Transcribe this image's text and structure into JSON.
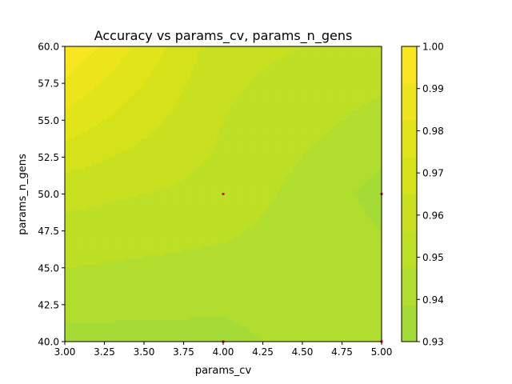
{
  "chart_data": {
    "type": "heatmap",
    "subtype": "filled-contour",
    "title": "Accuracy vs params_cv, params_n_gens",
    "xlabel": "params_cv",
    "ylabel": "params_n_gens",
    "xlim": [
      3.0,
      5.0
    ],
    "ylim": [
      40.0,
      60.0
    ],
    "x_ticks": [
      "3.00",
      "3.25",
      "3.50",
      "3.75",
      "4.00",
      "4.25",
      "4.50",
      "4.75",
      "5.00"
    ],
    "y_ticks": [
      "40.0",
      "42.5",
      "45.0",
      "47.5",
      "50.0",
      "52.5",
      "55.0",
      "57.5",
      "60.0"
    ],
    "colorbar": {
      "range": [
        0.93,
        1.0
      ],
      "ticks": [
        "0.93",
        "0.94",
        "0.95",
        "0.96",
        "0.97",
        "0.98",
        "0.99",
        "1.00"
      ],
      "levels": [
        0.93,
        0.9375,
        0.945,
        0.9525,
        0.96,
        0.9675,
        0.975,
        0.9825,
        0.99,
        0.9975
      ],
      "colors": [
        "#a5db36",
        "#b1dd2f",
        "#bddf26",
        "#c8e020",
        "#d5e21a",
        "#e1e418",
        "#ede51b",
        "#f8e621"
      ]
    },
    "grid": false,
    "accuracy_samples": [
      {
        "params_cv": 3.0,
        "params_n_gens": 60.0,
        "accuracy": 0.99
      },
      {
        "params_cv": 3.0,
        "params_n_gens": 50.0,
        "accuracy": 0.955
      },
      {
        "params_cv": 3.0,
        "params_n_gens": 40.0,
        "accuracy": 0.935
      },
      {
        "params_cv": 4.0,
        "params_n_gens": 60.0,
        "accuracy": 0.955
      },
      {
        "params_cv": 4.0,
        "params_n_gens": 50.0,
        "accuracy": 0.95
      },
      {
        "params_cv": 4.0,
        "params_n_gens": 40.0,
        "accuracy": 0.935
      },
      {
        "params_cv": 5.0,
        "params_n_gens": 60.0,
        "accuracy": 0.95
      },
      {
        "params_cv": 5.0,
        "params_n_gens": 50.0,
        "accuracy": 0.935
      },
      {
        "params_cv": 5.0,
        "params_n_gens": 40.0,
        "accuracy": 0.945
      }
    ],
    "sample_markers": [
      {
        "params_cv": 4.0,
        "params_n_gens": 50.0
      },
      {
        "params_cv": 5.0,
        "params_n_gens": 50.0
      },
      {
        "params_cv": 4.0,
        "params_n_gens": 40.0
      },
      {
        "params_cv": 5.0,
        "params_n_gens": 40.0
      }
    ],
    "marker_color": "#ff0000",
    "spine_color": "#000000"
  }
}
